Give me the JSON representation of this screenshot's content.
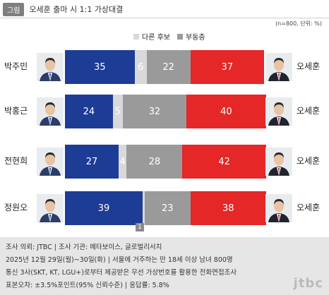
{
  "header": {
    "tag": "그림",
    "title": "오세훈 출마 시 1:1 가상대결"
  },
  "note": "(n=800, 단위: %)",
  "legend": [
    {
      "label": "다른 후보",
      "color": "#d9d9d9"
    },
    {
      "label": "부동층",
      "color": "#9a9a9a"
    }
  ],
  "colors": {
    "left": "#1d3c96",
    "other": "#d9d9d9",
    "undecided": "#9a9a9a",
    "right": "#e52727"
  },
  "chart_data": {
    "type": "bar",
    "categories": [
      "박주민",
      "박홍근",
      "전현희",
      "정원오"
    ],
    "opponent": "오세훈",
    "series": [
      {
        "name": "",
        "values": [
          35,
          24,
          27,
          39
        ]
      },
      {
        "name": "다른 후보",
        "values": [
          6,
          5,
          4,
          1
        ]
      },
      {
        "name": "부동층",
        "values": [
          22,
          32,
          28,
          23
        ]
      },
      {
        "name": "오세훈",
        "values": [
          37,
          40,
          42,
          38
        ]
      }
    ]
  },
  "footer": {
    "line1": "조사 의뢰: JTBC | 조사 기관: 메타보이스, 글로벌리서치",
    "line2": "2025년 12월 29일(월)~30일(화) | 서울에 거주하는 만 18세 이상 남녀 800명",
    "line3": "통신 3사(SKT, KT, LGU+)로부터 제공받은 무선 가상번호를 활용한 전화면접조사",
    "line4": "표본오차: ±3.5%포인트(95% 신뢰수준) | 응답률: 5.8%",
    "logo": "jtbc"
  }
}
